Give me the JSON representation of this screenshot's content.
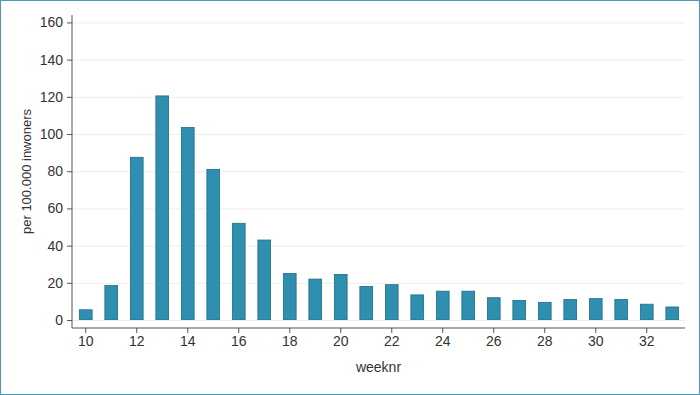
{
  "chart_data": {
    "type": "bar",
    "x_label": "weeknr",
    "y_label": "per 100.000 inwoners",
    "categories": [
      "10",
      null,
      "12",
      null,
      "14",
      null,
      "16",
      null,
      "18",
      null,
      "20",
      null,
      "22",
      null,
      "24",
      null,
      "26",
      null,
      "28",
      null,
      "30",
      null,
      "32",
      null
    ],
    "values": [
      5.5,
      18.5,
      87.5,
      120.5,
      103.5,
      81,
      52,
      43,
      25,
      22,
      24.5,
      18,
      19,
      13.5,
      15.5,
      15.5,
      12,
      10.5,
      9.5,
      11,
      11.5,
      11,
      8.5,
      7
    ],
    "color": "#2e8fb0",
    "ylim": [
      0,
      164
    ],
    "yticks": [
      0,
      20,
      40,
      60,
      80,
      100,
      120,
      140,
      160
    ],
    "grid": true
  }
}
